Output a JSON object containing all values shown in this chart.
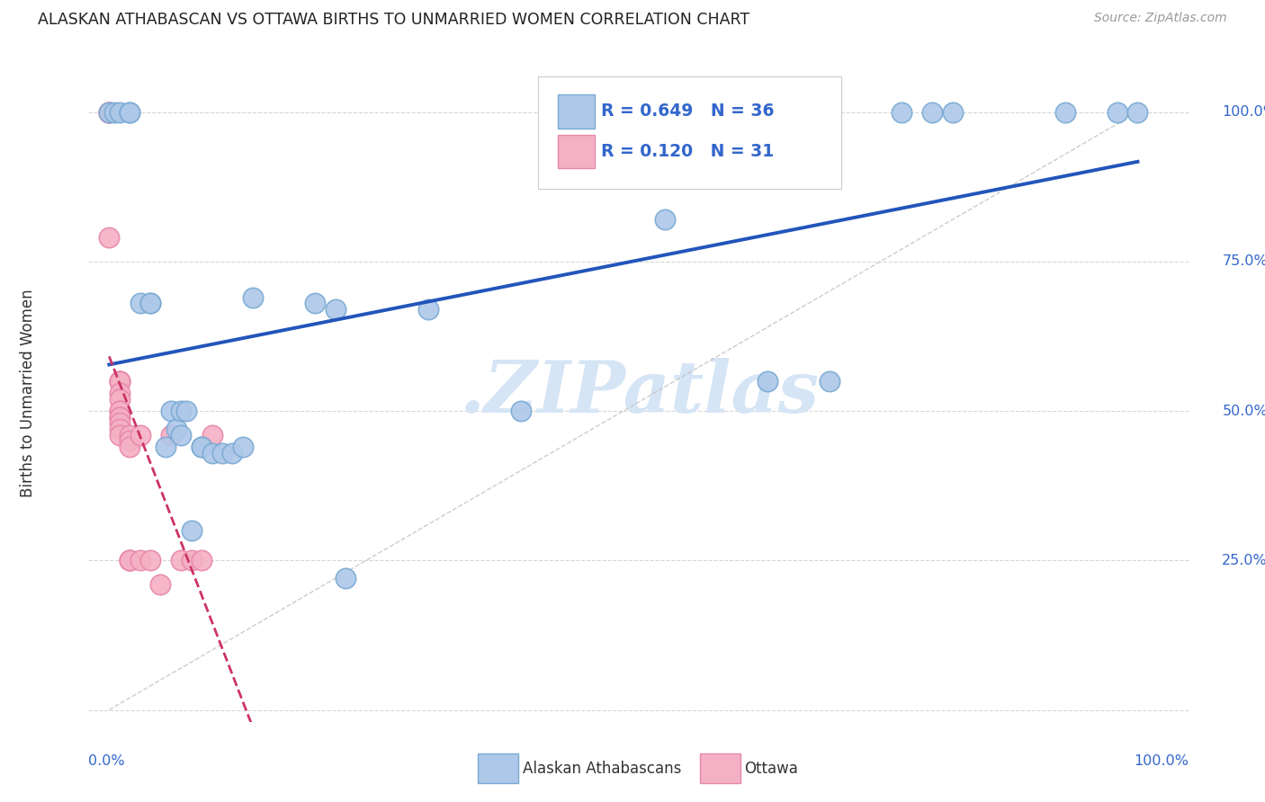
{
  "title": "ALASKAN ATHABASCAN VS OTTAWA BIRTHS TO UNMARRIED WOMEN CORRELATION CHART",
  "source": "Source: ZipAtlas.com",
  "ylabel": "Births to Unmarried Women",
  "legend_label1": "Alaskan Athabascans",
  "legend_label2": "Ottawa",
  "r1": 0.649,
  "n1": 36,
  "r2": 0.12,
  "n2": 31,
  "color1": "#adc8e8",
  "color2": "#f4b0c4",
  "line1_color": "#2255bb",
  "line2_color": "#cc3366",
  "watermark": ".ZIPatlas",
  "watermark_color": "#d5e5f5",
  "tick_color": "#3366cc",
  "grid_color": "#cccccc",
  "blue_points_x": [
    0.0,
    0.005,
    0.01,
    0.02,
    0.02,
    0.03,
    0.04,
    0.04,
    0.055,
    0.06,
    0.065,
    0.07,
    0.07,
    0.075,
    0.08,
    0.09,
    0.09,
    0.1,
    0.11,
    0.12,
    0.13,
    0.14,
    0.2,
    0.22,
    0.23,
    0.31,
    0.4,
    0.54,
    0.64,
    0.7,
    0.77,
    0.8,
    0.82,
    0.93,
    0.98,
    1.0
  ],
  "blue_points_y": [
    1.0,
    1.0,
    1.0,
    1.0,
    1.0,
    0.68,
    0.68,
    0.68,
    0.44,
    0.5,
    0.47,
    0.5,
    0.46,
    0.5,
    0.3,
    0.44,
    0.44,
    0.43,
    0.43,
    0.43,
    0.44,
    0.69,
    0.68,
    0.67,
    0.22,
    0.67,
    0.5,
    0.82,
    0.55,
    0.55,
    1.0,
    1.0,
    1.0,
    1.0,
    1.0,
    1.0
  ],
  "pink_points_x": [
    0.0,
    0.0,
    0.0,
    0.0,
    0.01,
    0.01,
    0.01,
    0.01,
    0.01,
    0.01,
    0.01,
    0.01,
    0.01,
    0.01,
    0.01,
    0.01,
    0.02,
    0.02,
    0.02,
    0.02,
    0.02,
    0.02,
    0.03,
    0.03,
    0.04,
    0.05,
    0.06,
    0.07,
    0.08,
    0.09,
    0.1
  ],
  "pink_points_y": [
    1.0,
    1.0,
    1.0,
    0.79,
    0.55,
    0.55,
    0.55,
    0.53,
    0.52,
    0.5,
    0.5,
    0.49,
    0.49,
    0.48,
    0.47,
    0.46,
    0.46,
    0.45,
    0.44,
    0.25,
    0.25,
    0.25,
    0.46,
    0.25,
    0.25,
    0.21,
    0.46,
    0.25,
    0.25,
    0.25,
    0.46
  ],
  "figsize": [
    14.06,
    8.92
  ],
  "dpi": 100
}
